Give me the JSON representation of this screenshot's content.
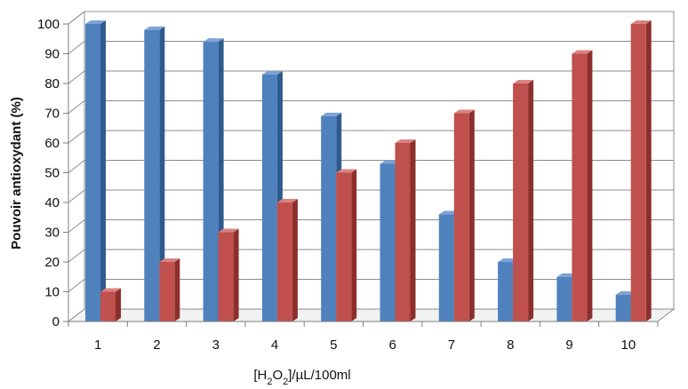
{
  "chart_data": {
    "type": "bar",
    "title": "",
    "xlabel": {
      "prefix": "[H",
      "sub1": "2",
      "mid": "O",
      "sub2": "2",
      "suffix": "]/µL/100ml"
    },
    "ylabel": "Pouvoir antioxydant (%)",
    "ylim": [
      0,
      100
    ],
    "yticks": [
      0,
      10,
      20,
      30,
      40,
      50,
      60,
      70,
      80,
      90,
      100
    ],
    "categories": [
      "1",
      "2",
      "3",
      "4",
      "5",
      "6",
      "7",
      "8",
      "9",
      "10"
    ],
    "series": [
      {
        "values": [
          100,
          98,
          94,
          83,
          69,
          53,
          36,
          20,
          15,
          9
        ],
        "color": "#4f81bd",
        "side_color": "#2f5a8f",
        "top_color": "#7da3d6"
      },
      {
        "values": [
          10,
          20,
          30,
          40,
          50,
          60,
          70,
          80,
          90,
          100
        ],
        "color": "#c0504d",
        "side_color": "#8c2f2c",
        "top_color": "#d9827f"
      }
    ],
    "grid": true,
    "style": "3d-clustered-column"
  }
}
